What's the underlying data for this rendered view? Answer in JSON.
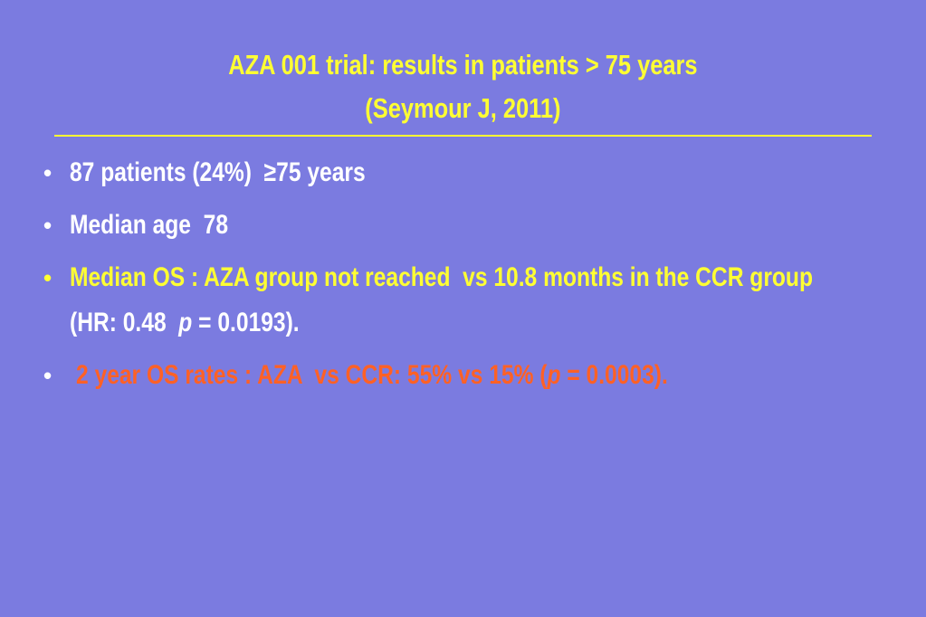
{
  "slide": {
    "title": [
      "AZA 001 trial: results in patients > 75 years",
      "(Seymour J, 2011)"
    ],
    "bullets": [
      {
        "runs": [
          "87 patients (24%)  ≥75 years"
        ]
      },
      {
        "runs": [
          "Median age  78"
        ]
      },
      {
        "runs": [
          "Median OS : AZA group not reached  vs 10.8 months in the CCR group",
          " (HR: 0.48  ",
          "p",
          " = 0.0193)."
        ]
      },
      {
        "runs": [
          "2 year OS rates : AZA  vs CCR: 55% vs 15% (",
          "p",
          " = 0.0003)."
        ]
      }
    ]
  }
}
